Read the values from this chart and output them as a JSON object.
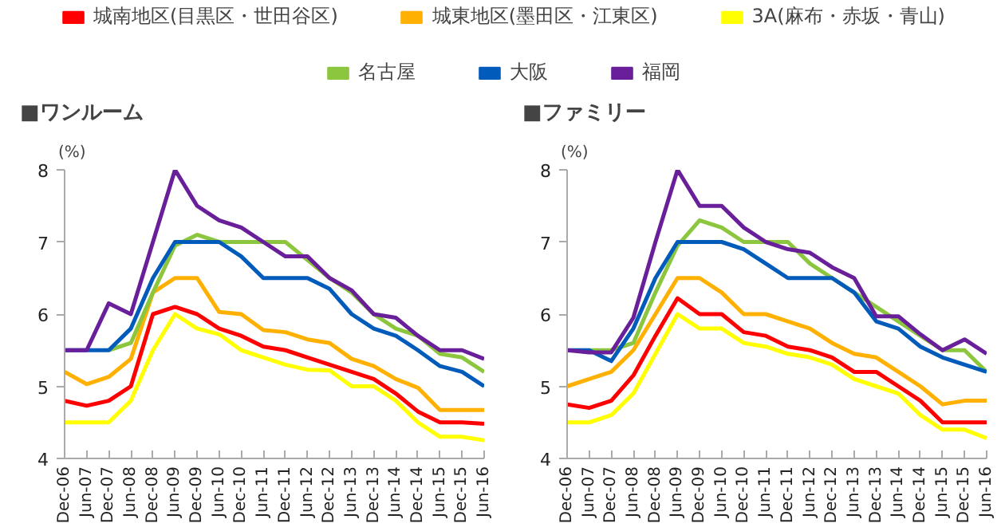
{
  "chart_data": [
    {
      "type": "line",
      "title": "■ワンルーム",
      "ylabel": "(%)",
      "legend": "top",
      "grid": false,
      "marker": "none",
      "line_style": "solid",
      "categories": [
        "Dec-06",
        "Jun-07",
        "Dec-07",
        "Jun-08",
        "Dec-08",
        "Jun-09",
        "Dec-09",
        "Jun-10",
        "Dec-10",
        "Jun-11",
        "Dec-11",
        "Jun-12",
        "Dec-12",
        "Jun-13",
        "Dec-13",
        "Jun-14",
        "Dec-14",
        "Jun-15",
        "Dec-15",
        "Jun-16"
      ],
      "ylim": [
        4,
        8
      ],
      "yticks": [
        4,
        5,
        6,
        7,
        8
      ],
      "series": [
        {
          "name": "城南地区(目黒区・世田谷区)",
          "color": "#ff0000",
          "values": [
            4.8,
            4.73,
            4.8,
            5.0,
            6.0,
            6.1,
            6.0,
            5.8,
            5.7,
            5.55,
            5.5,
            5.4,
            5.3,
            5.2,
            5.1,
            4.9,
            4.65,
            4.5,
            4.5,
            4.48
          ]
        },
        {
          "name": "城東地区(墨田区・江東区)",
          "color": "#ffb000",
          "values": [
            5.2,
            5.03,
            5.13,
            5.38,
            6.3,
            6.5,
            6.5,
            6.03,
            6.0,
            5.78,
            5.75,
            5.65,
            5.6,
            5.38,
            5.28,
            5.1,
            4.98,
            4.67,
            4.67,
            4.67
          ]
        },
        {
          "name": "3A(麻布・赤坂・青山)",
          "color": "#ffff00",
          "values": [
            4.5,
            4.5,
            4.5,
            4.8,
            5.5,
            6.0,
            5.8,
            5.72,
            5.5,
            5.4,
            5.3,
            5.23,
            5.22,
            5.0,
            5.0,
            4.8,
            4.5,
            4.3,
            4.3,
            4.25
          ]
        },
        {
          "name": "名古屋",
          "color": "#8cc63f",
          "values": [
            null,
            null,
            5.5,
            5.6,
            6.3,
            6.95,
            7.1,
            7.0,
            7.0,
            7.0,
            7.0,
            6.75,
            6.5,
            6.3,
            6.0,
            5.8,
            5.7,
            5.45,
            5.4,
            5.2
          ]
        },
        {
          "name": "大阪",
          "color": "#005bbb",
          "values": [
            5.5,
            5.5,
            5.5,
            5.8,
            6.5,
            7.0,
            7.0,
            7.0,
            6.8,
            6.5,
            6.5,
            6.5,
            6.35,
            6.0,
            5.8,
            5.7,
            5.5,
            5.28,
            5.2,
            5.0
          ]
        },
        {
          "name": "福岡",
          "color": "#6a1f9a",
          "values": [
            5.5,
            5.5,
            6.15,
            6.0,
            7.0,
            8.0,
            7.5,
            7.3,
            7.2,
            7.0,
            6.8,
            6.8,
            6.5,
            6.33,
            6.0,
            5.95,
            5.7,
            5.5,
            5.5,
            5.38
          ]
        }
      ]
    },
    {
      "type": "line",
      "title": "■ファミリー",
      "ylabel": "(%)",
      "grid": false,
      "marker": "none",
      "line_style": "solid",
      "categories": [
        "Dec-06",
        "Jun-07",
        "Dec-07",
        "Jun-08",
        "Dec-08",
        "Jun-09",
        "Dec-09",
        "Jun-10",
        "Dec-10",
        "Jun-11",
        "Dec-11",
        "Jun-12",
        "Dec-12",
        "Jun-13",
        "Dec-13",
        "Jun-14",
        "Dec-14",
        "Jun-15",
        "Dec-15",
        "Jun-16"
      ],
      "ylim": [
        4,
        8
      ],
      "yticks": [
        4,
        5,
        6,
        7,
        8
      ],
      "series": [
        {
          "color": "#ff0000",
          "values": [
            4.75,
            4.7,
            4.8,
            5.15,
            5.7,
            6.22,
            6.0,
            6.0,
            5.75,
            5.7,
            5.55,
            5.5,
            5.4,
            5.2,
            5.2,
            5.0,
            4.8,
            4.5,
            4.5,
            4.5
          ]
        },
        {
          "color": "#ffb000",
          "values": [
            5.0,
            5.1,
            5.2,
            5.5,
            6.0,
            6.5,
            6.5,
            6.3,
            6.0,
            6.0,
            5.9,
            5.8,
            5.6,
            5.45,
            5.4,
            5.2,
            5.0,
            4.75,
            4.8,
            4.8
          ]
        },
        {
          "color": "#ffff00",
          "values": [
            4.5,
            4.5,
            4.6,
            4.9,
            5.45,
            6.0,
            5.8,
            5.8,
            5.6,
            5.55,
            5.45,
            5.4,
            5.3,
            5.1,
            5.0,
            4.9,
            4.6,
            4.4,
            4.4,
            4.28
          ]
        },
        {
          "color": "#8cc63f",
          "values": [
            null,
            5.5,
            5.5,
            5.6,
            6.3,
            6.95,
            7.3,
            7.2,
            7.0,
            7.0,
            7.0,
            6.7,
            6.5,
            6.3,
            6.1,
            5.9,
            5.7,
            5.5,
            5.5,
            5.2
          ]
        },
        {
          "color": "#005bbb",
          "values": [
            5.5,
            5.5,
            5.35,
            5.8,
            6.5,
            7.0,
            7.0,
            7.0,
            6.9,
            6.7,
            6.5,
            6.5,
            6.5,
            6.3,
            5.9,
            5.8,
            5.55,
            5.4,
            5.3,
            5.2
          ]
        },
        {
          "color": "#6a1f9a",
          "values": [
            5.5,
            5.47,
            5.47,
            5.95,
            7.0,
            8.0,
            7.5,
            7.5,
            7.2,
            7.0,
            6.9,
            6.85,
            6.65,
            6.5,
            5.97,
            5.97,
            5.72,
            5.5,
            5.65,
            5.45
          ]
        }
      ]
    }
  ]
}
